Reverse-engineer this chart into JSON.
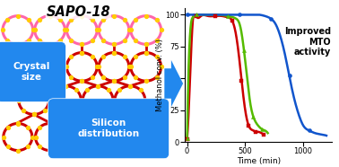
{
  "title_left": "SAPO-18",
  "label_crystal": "Crystal\nsize",
  "label_silicon": "Silicon\ndistribution",
  "label_improved": "Improved\nMTO\nactivity",
  "ylabel": "Methanol conv. (%)",
  "xlabel": "Time (min)",
  "ylim": [
    0,
    105
  ],
  "xlim": [
    -20,
    1250
  ],
  "yticks": [
    0,
    25,
    50,
    75,
    100
  ],
  "xticks": [
    0,
    500,
    1000
  ],
  "red_color": "#cc0000",
  "green_color": "#55bb00",
  "blue_color": "#1155cc",
  "box_color": "#2288ee",
  "arrow_color": "#2288ee",
  "background_color": "#ffffff",
  "pink": "#ff66aa",
  "yellow": "#ffcc00",
  "red": "#cc0000",
  "red_x": [
    0,
    20,
    50,
    80,
    120,
    180,
    240,
    300,
    350,
    390,
    420,
    450,
    470,
    490,
    510,
    530,
    550,
    570,
    590,
    610,
    640,
    660
  ],
  "red_y": [
    2,
    38,
    96,
    99,
    99,
    99,
    99,
    99,
    98,
    95,
    85,
    65,
    48,
    32,
    20,
    13,
    10,
    9,
    8,
    8,
    7,
    6
  ],
  "green_x": [
    0,
    20,
    50,
    80,
    150,
    250,
    350,
    420,
    460,
    490,
    520,
    545,
    570,
    595,
    620,
    645,
    670,
    695
  ],
  "green_y": [
    3,
    75,
    98,
    100,
    100,
    100,
    99,
    97,
    90,
    72,
    48,
    30,
    20,
    15,
    12,
    10,
    9,
    7
  ],
  "blue_x": [
    0,
    50,
    150,
    300,
    450,
    550,
    620,
    670,
    720,
    760,
    800,
    840,
    880,
    920,
    960,
    1000,
    1050,
    1100,
    1150,
    1200
  ],
  "blue_y": [
    100,
    100,
    100,
    100,
    100,
    100,
    100,
    99,
    97,
    93,
    84,
    70,
    52,
    35,
    22,
    13,
    9,
    7,
    6,
    5
  ]
}
